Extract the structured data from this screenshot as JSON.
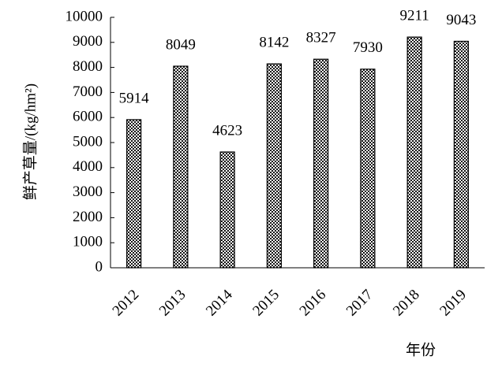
{
  "chart_data": {
    "type": "bar",
    "y_label": "鲜产草量/(kg/hm²)",
    "x_label": "年份",
    "categories": [
      "2012",
      "2013",
      "2014",
      "2015",
      "2016",
      "2017",
      "2018",
      "2019"
    ],
    "values": [
      5914,
      8049,
      4623,
      8142,
      8327,
      7930,
      9211,
      9043
    ],
    "color": "#555555",
    "ylim": [
      0,
      10000
    ],
    "yticks": [
      0,
      1000,
      2000,
      3000,
      4000,
      5000,
      6000,
      7000,
      8000,
      9000,
      10000
    ],
    "grid": false
  }
}
